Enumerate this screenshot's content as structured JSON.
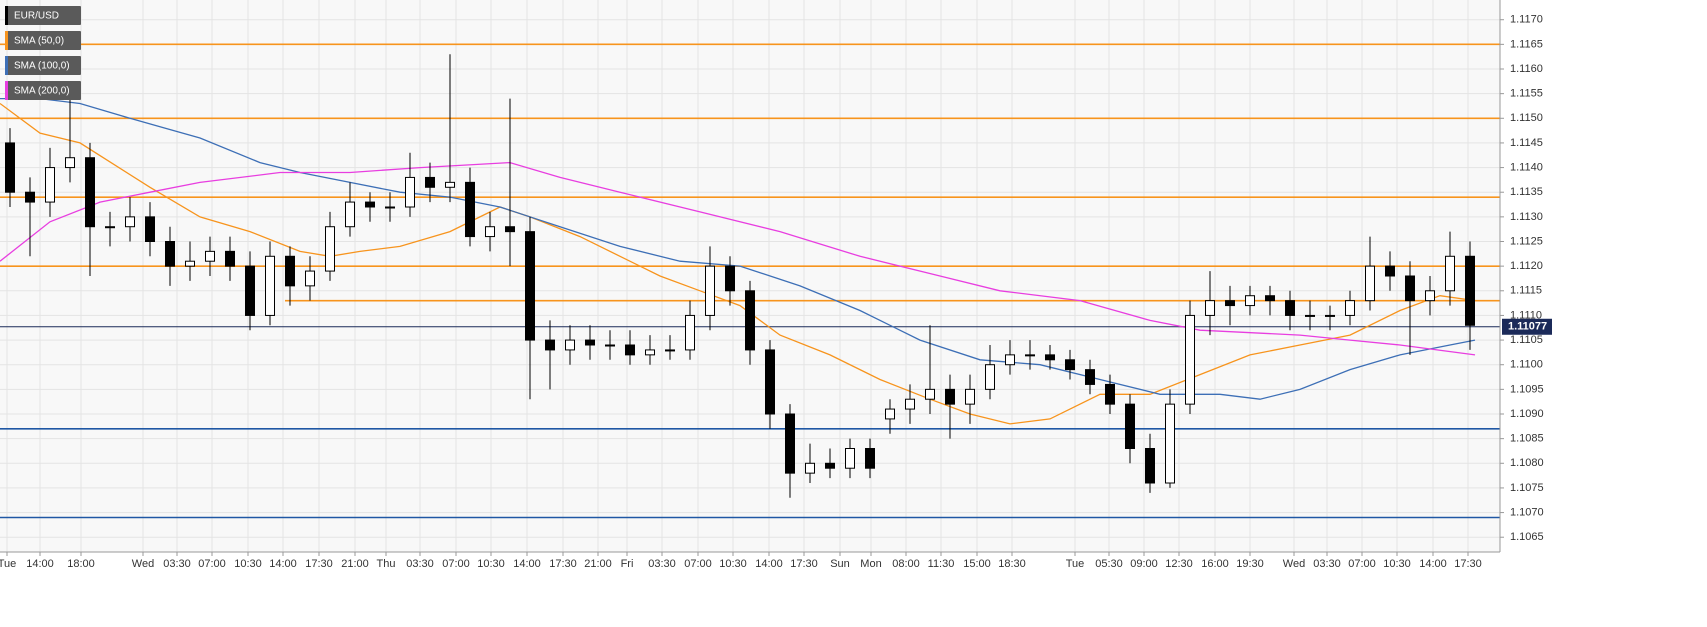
{
  "chart_data": {
    "type": "candlestick",
    "name": "EUR/USD",
    "up_color": "#ffffff",
    "down_color": "#000000",
    "open": [
      1.1145,
      1.1135,
      1.1133,
      1.114,
      1.1142,
      1.1128,
      1.1128,
      1.113,
      1.1125,
      1.112,
      1.1121,
      1.1123,
      1.112,
      1.111,
      1.1122,
      1.1116,
      1.1119,
      1.1128,
      1.1133,
      1.1132,
      1.1132,
      1.1138,
      1.1136,
      1.1137,
      1.1126,
      1.1128,
      1.1127,
      1.1105,
      1.1103,
      1.1105,
      1.1104,
      1.1104,
      1.1102,
      1.1103,
      1.1103,
      1.111,
      1.112,
      1.1115,
      1.1103,
      1.109,
      1.1078,
      1.108,
      1.1079,
      1.1083,
      1.1089,
      1.1091,
      1.1093,
      1.1095,
      1.1092,
      1.1095,
      1.11,
      1.1102,
      1.1102,
      1.1101,
      1.1099,
      1.1096,
      1.1092,
      1.1083,
      1.1076,
      1.1092,
      1.111,
      1.1113,
      1.1112,
      1.1114,
      1.1113,
      1.111,
      1.111,
      1.111,
      1.1113,
      1.112,
      1.1118,
      1.1113,
      1.1115,
      1.1122
    ],
    "high": [
      1.1148,
      1.1138,
      1.1144,
      1.1154,
      1.1145,
      1.1131,
      1.1134,
      1.1133,
      1.1128,
      1.1125,
      1.1126,
      1.1126,
      1.1123,
      1.1125,
      1.1124,
      1.1122,
      1.1131,
      1.1137,
      1.1135,
      1.1135,
      1.1143,
      1.1141,
      1.1163,
      1.114,
      1.1131,
      1.1154,
      1.113,
      1.1109,
      1.1108,
      1.1108,
      1.1107,
      1.1107,
      1.1106,
      1.1106,
      1.1113,
      1.1124,
      1.1122,
      1.1117,
      1.1105,
      1.1092,
      1.1084,
      1.1083,
      1.1085,
      1.1085,
      1.1093,
      1.1096,
      1.1108,
      1.1098,
      1.1098,
      1.1104,
      1.1105,
      1.1105,
      1.1104,
      1.1103,
      1.1101,
      1.1098,
      1.1094,
      1.1086,
      1.1095,
      1.1113,
      1.1119,
      1.1116,
      1.1116,
      1.1116,
      1.1115,
      1.1113,
      1.1112,
      1.1115,
      1.1126,
      1.1123,
      1.1121,
      1.1118,
      1.1127,
      1.1125
    ],
    "low": [
      1.1132,
      1.1122,
      1.113,
      1.1137,
      1.1118,
      1.1124,
      1.1125,
      1.1122,
      1.1116,
      1.1117,
      1.1118,
      1.1117,
      1.1107,
      1.1108,
      1.1112,
      1.1113,
      1.1117,
      1.1126,
      1.1129,
      1.1129,
      1.113,
      1.1133,
      1.1133,
      1.1124,
      1.1123,
      1.112,
      1.1093,
      1.1095,
      1.11,
      1.1101,
      1.1101,
      1.11,
      1.11,
      1.1101,
      1.1101,
      1.1107,
      1.1112,
      1.11,
      1.1087,
      1.1073,
      1.1076,
      1.1077,
      1.1077,
      1.1077,
      1.1086,
      1.1088,
      1.109,
      1.1085,
      1.1088,
      1.1093,
      1.1098,
      1.1099,
      1.1099,
      1.1097,
      1.1094,
      1.109,
      1.108,
      1.1074,
      1.1075,
      1.109,
      1.1106,
      1.1108,
      1.111,
      1.111,
      1.1107,
      1.1107,
      1.1107,
      1.1108,
      1.1111,
      1.1115,
      1.1102,
      1.111,
      1.1112,
      1.1103
    ],
    "close": [
      1.1135,
      1.1133,
      1.114,
      1.1142,
      1.1128,
      1.1128,
      1.113,
      1.1125,
      1.112,
      1.1121,
      1.1123,
      1.112,
      1.111,
      1.1122,
      1.1116,
      1.1119,
      1.1128,
      1.1133,
      1.1132,
      1.1132,
      1.1138,
      1.1136,
      1.1137,
      1.1126,
      1.1128,
      1.1127,
      1.1105,
      1.1103,
      1.1105,
      1.1104,
      1.1104,
      1.1102,
      1.1103,
      1.1103,
      1.111,
      1.112,
      1.1115,
      1.1103,
      1.109,
      1.1078,
      1.108,
      1.1079,
      1.1083,
      1.1079,
      1.1091,
      1.1093,
      1.1095,
      1.1092,
      1.1095,
      1.11,
      1.1102,
      1.1102,
      1.1101,
      1.1099,
      1.1096,
      1.1092,
      1.1083,
      1.1076,
      1.1092,
      1.111,
      1.1113,
      1.1112,
      1.1114,
      1.1113,
      1.111,
      1.111,
      1.111,
      1.1113,
      1.112,
      1.1118,
      1.1113,
      1.1115,
      1.1122,
      1.1108
    ],
    "series": [
      {
        "name": "SMA (50,0)",
        "color": "#f7941d",
        "x": [
          -0.5,
          1.5,
          3.5,
          7,
          9.5,
          12,
          14.5,
          16,
          17.5,
          19.5,
          22,
          24.5,
          26,
          28.5,
          30.5,
          32.5,
          34.5,
          36.5,
          38.5,
          41,
          43.5,
          46,
          48,
          50,
          52,
          54.5,
          57,
          59.5,
          62,
          64.5,
          67,
          69.5,
          71.5,
          73.25
        ],
        "values": [
          1.1153,
          1.1147,
          1.1145,
          1.1136,
          1.113,
          1.1127,
          1.1123,
          1.1122,
          1.1123,
          1.1124,
          1.1127,
          1.1132,
          1.113,
          1.1126,
          1.1122,
          1.1118,
          1.1115,
          1.1112,
          1.1106,
          1.1102,
          1.1097,
          1.1093,
          1.109,
          1.1088,
          1.1089,
          1.1094,
          1.1094,
          1.1098,
          1.1102,
          1.1104,
          1.1106,
          1.1111,
          1.1114,
          1.1113
        ]
      },
      {
        "name": "SMA (100,0)",
        "color": "#3d6fb6",
        "x": [
          -0.5,
          1.5,
          3.5,
          6,
          9.5,
          12.5,
          14.5,
          17,
          19.5,
          22,
          24.5,
          27.5,
          30.5,
          33.5,
          36.5,
          39.5,
          42.5,
          45.5,
          48.5,
          51.5,
          54.5,
          57.5,
          60.5,
          62.5,
          64.5,
          67,
          69.5,
          72,
          73.25
        ],
        "values": [
          1.1154,
          1.1154,
          1.1153,
          1.115,
          1.1146,
          1.1141,
          1.1139,
          1.1137,
          1.1135,
          1.1134,
          1.1132,
          1.1128,
          1.1124,
          1.1121,
          1.112,
          1.1116,
          1.1111,
          1.1105,
          1.1101,
          1.11,
          1.1097,
          1.1094,
          1.1094,
          1.1093,
          1.1095,
          1.1099,
          1.1102,
          1.1104,
          1.1105
        ]
      },
      {
        "name": "SMA (200,0)",
        "color": "#e83ee0",
        "x": [
          -0.5,
          2,
          4.5,
          7,
          9.5,
          13.5,
          17,
          20.5,
          25,
          27.5,
          30.5,
          34.5,
          38.5,
          42.5,
          46.5,
          49.5,
          53.5,
          57,
          59.5,
          64.5,
          67,
          69.5,
          73.25
        ],
        "values": [
          1.1121,
          1.1129,
          1.1133,
          1.1135,
          1.1137,
          1.1139,
          1.1139,
          1.114,
          1.1141,
          1.1138,
          1.1135,
          1.1131,
          1.1127,
          1.1122,
          1.1118,
          1.1115,
          1.1113,
          1.1109,
          1.1107,
          1.1106,
          1.1105,
          1.1104,
          1.1102
        ]
      }
    ],
    "levels": [
      {
        "value": 1.1165,
        "color": "#f7941d"
      },
      {
        "value": 1.115,
        "color": "#f7941d"
      },
      {
        "value": 1.1134,
        "color": "#f7941d"
      },
      {
        "value": 1.112,
        "color": "#f7941d"
      },
      {
        "value": 1.1113,
        "color": "#f7941d",
        "from": 13.75
      },
      {
        "value": 1.1087,
        "color": "#1f57a4"
      },
      {
        "value": 1.1069,
        "color": "#1f57a4"
      }
    ],
    "last_price": 1.11077,
    "last_price_color": "#1b2a59",
    "xlim": [
      -0.5,
      74.5
    ],
    "ylim": [
      1.1062,
      1.1174
    ],
    "grid": true,
    "yticks": [
      {
        "value": 1.1065,
        "label": "1.1065"
      },
      {
        "value": 1.107,
        "label": "1.1070"
      },
      {
        "value": 1.1075,
        "label": "1.1075"
      },
      {
        "value": 1.108,
        "label": "1.1080"
      },
      {
        "value": 1.1085,
        "label": "1.1085"
      },
      {
        "value": 1.109,
        "label": "1.1090"
      },
      {
        "value": 1.1095,
        "label": "1.1095"
      },
      {
        "value": 1.11,
        "label": "1.1100"
      },
      {
        "value": 1.1105,
        "label": "1.1105"
      },
      {
        "value": 1.111,
        "label": "1.1110"
      },
      {
        "value": 1.1115,
        "label": "1.1115"
      },
      {
        "value": 1.112,
        "label": "1.1120"
      },
      {
        "value": 1.1125,
        "label": "1.1125"
      },
      {
        "value": 1.113,
        "label": "1.1130"
      },
      {
        "value": 1.1135,
        "label": "1.1135"
      },
      {
        "value": 1.114,
        "label": "1.1140"
      },
      {
        "value": 1.1145,
        "label": "1.1145"
      },
      {
        "value": 1.115,
        "label": "1.1150"
      },
      {
        "value": 1.1155,
        "label": "1.1155"
      },
      {
        "value": 1.116,
        "label": "1.1160"
      },
      {
        "value": 1.1165,
        "label": "1.1165"
      },
      {
        "value": 1.117,
        "label": "1.1170"
      }
    ],
    "xticks": [
      {
        "value": -0.15,
        "label": "Tue"
      },
      {
        "value": 1.5,
        "label": "14:00"
      },
      {
        "value": 3.55,
        "label": "18:00"
      },
      {
        "value": 6.65,
        "label": "Wed"
      },
      {
        "value": 8.35,
        "label": "03:30"
      },
      {
        "value": 10.1,
        "label": "07:00"
      },
      {
        "value": 11.9,
        "label": "10:30"
      },
      {
        "value": 13.65,
        "label": "14:00"
      },
      {
        "value": 15.45,
        "label": "17:30"
      },
      {
        "value": 17.25,
        "label": "21:00"
      },
      {
        "value": 18.8,
        "label": "Thu"
      },
      {
        "value": 20.5,
        "label": "03:30"
      },
      {
        "value": 22.3,
        "label": "07:00"
      },
      {
        "value": 24.05,
        "label": "10:30"
      },
      {
        "value": 25.85,
        "label": "14:00"
      },
      {
        "value": 27.65,
        "label": "17:30"
      },
      {
        "value": 29.4,
        "label": "21:00"
      },
      {
        "value": 30.85,
        "label": "Fri"
      },
      {
        "value": 32.6,
        "label": "03:30"
      },
      {
        "value": 34.4,
        "label": "07:00"
      },
      {
        "value": 36.15,
        "label": "10:30"
      },
      {
        "value": 37.95,
        "label": "14:00"
      },
      {
        "value": 39.7,
        "label": "17:30"
      },
      {
        "value": 41.5,
        "label": "Sun"
      },
      {
        "value": 43.05,
        "label": "Mon"
      },
      {
        "value": 44.8,
        "label": "08:00"
      },
      {
        "value": 46.55,
        "label": "11:30"
      },
      {
        "value": 48.35,
        "label": "15:00"
      },
      {
        "value": 50.1,
        "label": "18:30"
      },
      {
        "value": 53.25,
        "label": "Tue"
      },
      {
        "value": 54.95,
        "label": "05:30"
      },
      {
        "value": 56.7,
        "label": "09:00"
      },
      {
        "value": 58.45,
        "label": "12:30"
      },
      {
        "value": 60.25,
        "label": "16:00"
      },
      {
        "value": 62,
        "label": "19:30"
      },
      {
        "value": 64.2,
        "label": "Wed"
      },
      {
        "value": 65.85,
        "label": "03:30"
      },
      {
        "value": 67.6,
        "label": "07:00"
      },
      {
        "value": 69.35,
        "label": "10:30"
      },
      {
        "value": 71.15,
        "label": "14:00"
      },
      {
        "value": 72.9,
        "label": "17:30"
      }
    ]
  }
}
